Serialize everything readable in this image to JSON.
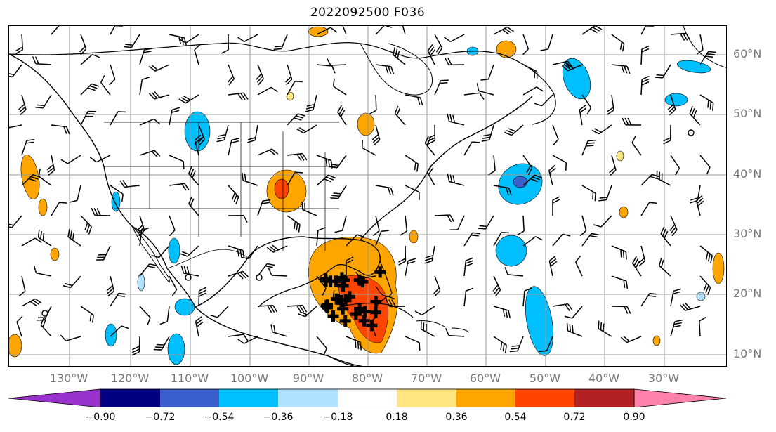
{
  "title": "2022092500 F036",
  "lat_labels": [
    "60°N",
    "50°N",
    "40°N",
    "30°N",
    "20°N",
    "10°N"
  ],
  "lon_labels": [
    "130°W",
    "120°W",
    "110°W",
    "100°W",
    "90°W",
    "80°W",
    "70°W",
    "60°W",
    "50°W",
    "40°W",
    "30°W"
  ],
  "colorbar": {
    "ticks": [
      "−0.90",
      "−0.72",
      "−0.54",
      "−0.36",
      "−0.18",
      "0.18",
      "0.36",
      "0.54",
      "0.72",
      "0.90"
    ],
    "colors": [
      "#9932cc",
      "#000080",
      "#3a5fcd",
      "#00bfff",
      "#b0e2ff",
      "#ffffff",
      "#ffe680",
      "#ffa500",
      "#ff4500",
      "#b22222",
      "#ff82ab"
    ]
  },
  "colors": {
    "coast": "#000000",
    "grid": "#9a9a9a",
    "barb": "#000000",
    "orange": "#ffa500",
    "yellow": "#ffe680",
    "red": "#ff4500",
    "cyan": "#00bfff",
    "lightblue": "#b0e2ff",
    "blue": "#3a5fcd"
  }
}
